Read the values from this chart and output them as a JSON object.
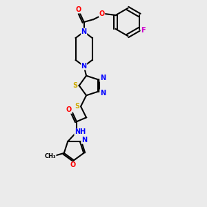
{
  "bg_color": "#ebebeb",
  "atom_colors": {
    "C": "#000000",
    "N": "#0000ff",
    "O": "#ff0000",
    "S": "#ccaa00",
    "F": "#cc00cc",
    "H": "#555555"
  },
  "figsize": [
    3.0,
    3.0
  ],
  "dpi": 100
}
